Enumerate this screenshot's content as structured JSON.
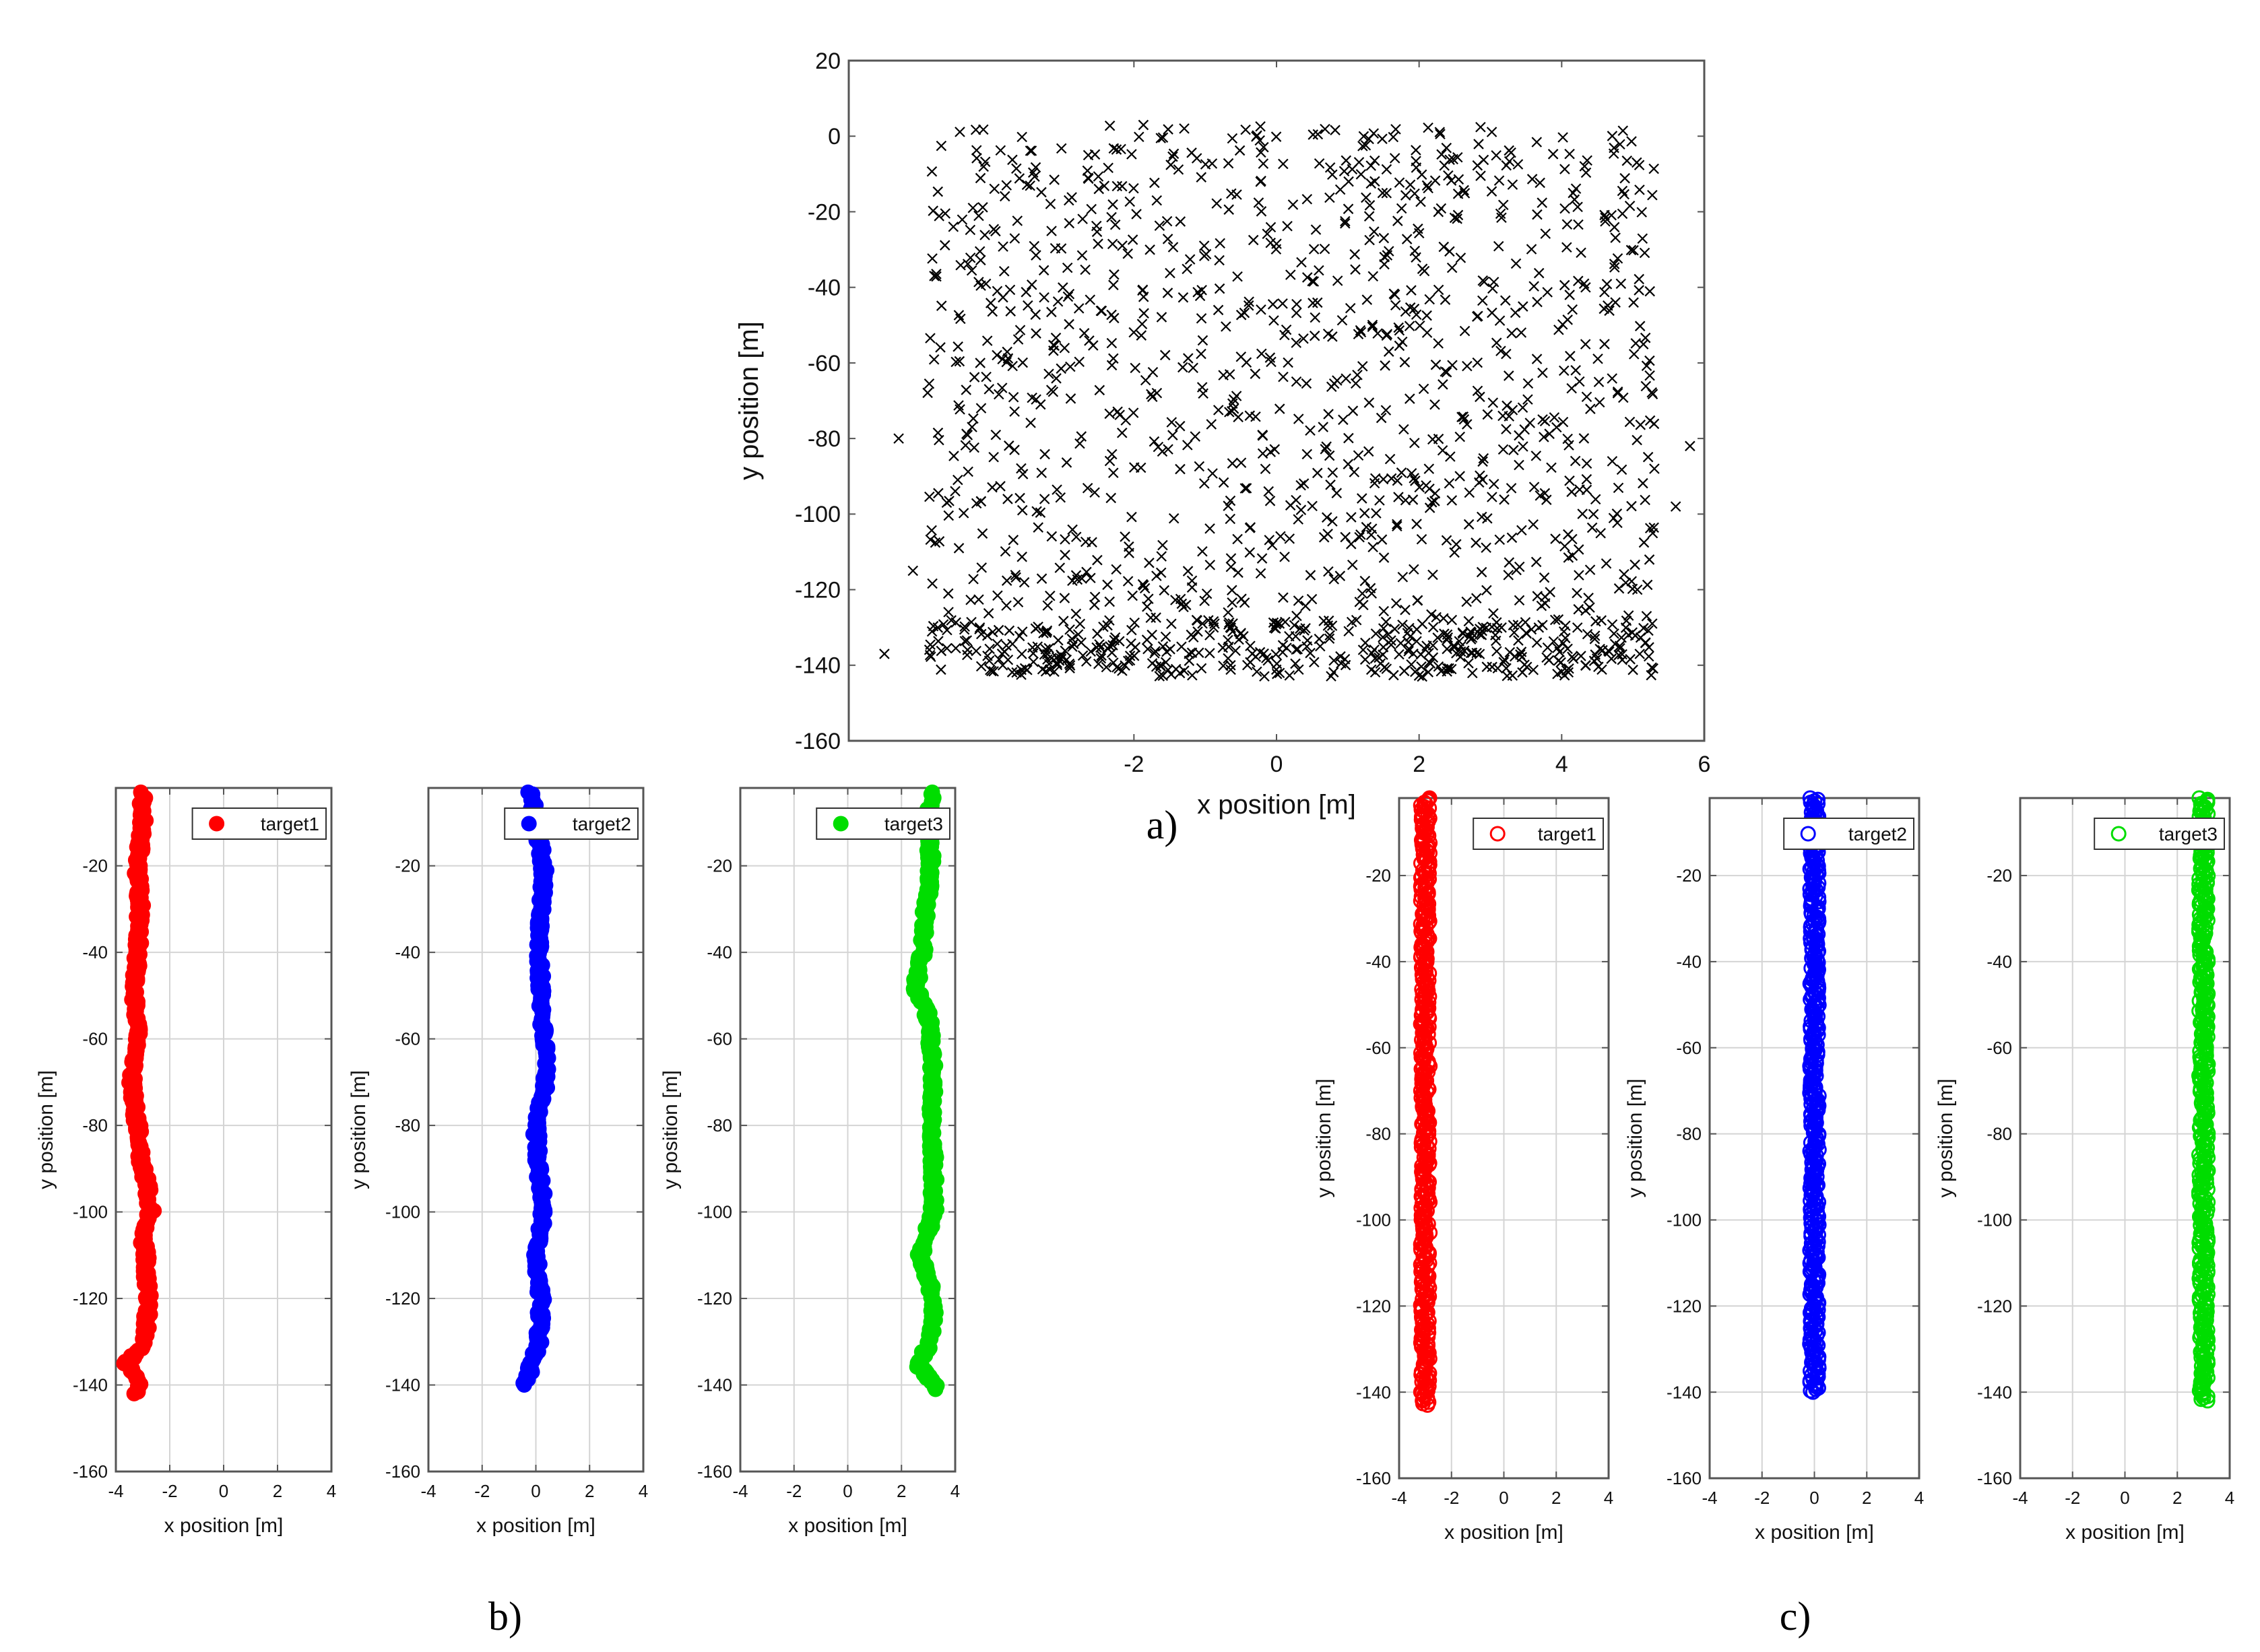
{
  "captions": {
    "a": "a)",
    "b": "b)",
    "c": "c)"
  },
  "colors": {
    "scatter": "#000000",
    "target1": "#ff0000",
    "target2": "#0000ff",
    "target3": "#00dd00",
    "grid": "#d4d4d4",
    "axis": "#555555"
  },
  "chart_data": [
    {
      "id": "a",
      "type": "scatter",
      "marker": "x",
      "xlabel": "x position [m]",
      "ylabel": "y position [m]",
      "xlim": [
        -6,
        6
      ],
      "ylim": [
        -160,
        20
      ],
      "xticks": [
        -2,
        0,
        2,
        4,
        6
      ],
      "yticks": [
        20,
        0,
        -20,
        -40,
        -60,
        -80,
        -100,
        -120,
        -140,
        -160
      ],
      "grid": false,
      "point_count": 1500,
      "x_range_main": [
        -4.9,
        5.3
      ],
      "y_range_main": [
        -142,
        3
      ],
      "dense_band_y": [
        -143,
        -128
      ],
      "notable_points": [
        {
          "x": -5.3,
          "y": -80
        },
        {
          "x": 5.8,
          "y": -82
        },
        {
          "x": 5.6,
          "y": -98
        },
        {
          "x": 5.3,
          "y": -88
        },
        {
          "x": -5.5,
          "y": -137
        },
        {
          "x": -5.1,
          "y": -115
        },
        {
          "x": -4.8,
          "y": -37
        }
      ]
    },
    {
      "id": "b1",
      "type": "scatter",
      "marker": "filled-circle",
      "legend": "target1",
      "legend_position": "top-right",
      "xlabel": "x position [m]",
      "ylabel": "y position [m]",
      "xlim": [
        -4,
        4
      ],
      "ylim": [
        -160,
        -2
      ],
      "xticks": [
        -4,
        -2,
        0,
        2,
        4
      ],
      "yticks": [
        -20,
        -40,
        -60,
        -80,
        -100,
        -120,
        -140,
        -160
      ],
      "grid": true,
      "series": [
        {
          "name": "target1",
          "color": "#ff0000",
          "y_start": -3,
          "y_end": -142,
          "x_profile_y": [
            -3,
            -10,
            -20,
            -30,
            -40,
            -50,
            -60,
            -70,
            -80,
            -90,
            -95,
            -100,
            -105,
            -110,
            -120,
            -130,
            -135,
            -140,
            -142
          ],
          "x_profile_x": [
            -3.0,
            -3.0,
            -3.2,
            -3.1,
            -3.2,
            -3.3,
            -3.2,
            -3.4,
            -3.2,
            -3.0,
            -2.8,
            -2.7,
            -3.0,
            -2.9,
            -2.8,
            -2.9,
            -3.6,
            -3.1,
            -3.3
          ]
        }
      ]
    },
    {
      "id": "b2",
      "type": "scatter",
      "marker": "filled-circle",
      "legend": "target2",
      "legend_position": "top-right",
      "xlabel": "x position [m]",
      "ylabel": "y position [m]",
      "xlim": [
        -4,
        4
      ],
      "ylim": [
        -160,
        -2
      ],
      "xticks": [
        -4,
        -2,
        0,
        2,
        4
      ],
      "yticks": [
        -20,
        -40,
        -60,
        -80,
        -100,
        -120,
        -140,
        -160
      ],
      "grid": true,
      "series": [
        {
          "name": "target2",
          "color": "#0000ff",
          "y_start": -3,
          "y_end": -140,
          "x_profile_y": [
            -3,
            -10,
            -20,
            -30,
            -40,
            -50,
            -60,
            -70,
            -80,
            -90,
            -100,
            -110,
            -120,
            -130,
            -138,
            -140
          ],
          "x_profile_x": [
            -0.2,
            0.0,
            0.3,
            0.2,
            0.1,
            0.2,
            0.3,
            0.4,
            0.0,
            0.1,
            0.3,
            0.0,
            0.2,
            0.1,
            -0.3,
            -0.4
          ]
        }
      ]
    },
    {
      "id": "b3",
      "type": "scatter",
      "marker": "filled-circle",
      "legend": "target3",
      "legend_position": "top-right",
      "xlabel": "x position [m]",
      "ylabel": "y position [m]",
      "xlim": [
        -4,
        4
      ],
      "ylim": [
        -160,
        -2
      ],
      "xticks": [
        -4,
        -2,
        0,
        2,
        4
      ],
      "yticks": [
        -20,
        -40,
        -60,
        -80,
        -100,
        -120,
        -140,
        -160
      ],
      "grid": true,
      "series": [
        {
          "name": "target3",
          "color": "#00dd00",
          "y_start": -3,
          "y_end": -141,
          "x_profile_y": [
            -3,
            -10,
            -20,
            -30,
            -40,
            -48,
            -55,
            -60,
            -70,
            -80,
            -90,
            -100,
            -110,
            -120,
            -130,
            -135,
            -141
          ],
          "x_profile_x": [
            3.1,
            3.0,
            3.1,
            2.9,
            2.8,
            2.5,
            3.0,
            3.1,
            3.2,
            3.1,
            3.2,
            3.2,
            2.7,
            3.2,
            3.1,
            2.6,
            3.3
          ]
        }
      ]
    },
    {
      "id": "c1",
      "type": "scatter",
      "marker": "open-circle",
      "legend": "target1",
      "legend_position": "top-right",
      "xlabel": "x position [m]",
      "ylabel": "y position [m]",
      "xlim": [
        -4,
        4
      ],
      "ylim": [
        -160,
        -2
      ],
      "xticks": [
        -4,
        -2,
        0,
        2,
        4
      ],
      "yticks": [
        -20,
        -40,
        -60,
        -80,
        -100,
        -120,
        -140,
        -160
      ],
      "grid": true,
      "series": [
        {
          "name": "target1",
          "color": "#ff0000",
          "x": -3.0,
          "y_start": -2,
          "y_end": -143
        }
      ]
    },
    {
      "id": "c2",
      "type": "scatter",
      "marker": "open-circle",
      "legend": "target2",
      "legend_position": "top-right",
      "xlabel": "x position [m]",
      "ylabel": "y position [m]",
      "xlim": [
        -4,
        4
      ],
      "ylim": [
        -160,
        -2
      ],
      "xticks": [
        -4,
        -2,
        0,
        2,
        4
      ],
      "yticks": [
        -20,
        -40,
        -60,
        -80,
        -100,
        -120,
        -140,
        -160
      ],
      "grid": true,
      "series": [
        {
          "name": "target2",
          "color": "#0000ff",
          "x": 0.0,
          "y_start": -2,
          "y_end": -140
        }
      ]
    },
    {
      "id": "c3",
      "type": "scatter",
      "marker": "open-circle",
      "legend": "target3",
      "legend_position": "top-right",
      "xlabel": "x position [m]",
      "ylabel": "y position [m]",
      "xlim": [
        -4,
        4
      ],
      "ylim": [
        -160,
        -2
      ],
      "xticks": [
        -4,
        -2,
        0,
        2,
        4
      ],
      "yticks": [
        -20,
        -40,
        -60,
        -80,
        -100,
        -120,
        -140,
        -160
      ],
      "grid": true,
      "series": [
        {
          "name": "target3",
          "color": "#00dd00",
          "x": 3.0,
          "y_start": -2,
          "y_end": -142
        }
      ]
    }
  ]
}
